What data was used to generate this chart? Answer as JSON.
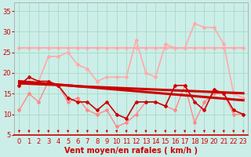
{
  "background_color": "#cceee8",
  "grid_color": "#aaddcc",
  "xlabel": "Vent moyen/en rafales ( km/h )",
  "xlim": [
    -0.5,
    23.5
  ],
  "ylim": [
    5,
    37
  ],
  "yticks": [
    5,
    10,
    15,
    20,
    25,
    30,
    35
  ],
  "xticks": [
    0,
    1,
    2,
    3,
    4,
    5,
    6,
    7,
    8,
    9,
    10,
    11,
    12,
    13,
    14,
    15,
    16,
    17,
    18,
    19,
    20,
    21,
    22,
    23
  ],
  "series": [
    {
      "color": "#ffaaaa",
      "lw": 1.2,
      "marker": "D",
      "ms": 2.0,
      "data": [
        17,
        18,
        18,
        24,
        24,
        25,
        22,
        21,
        18,
        19,
        19,
        19,
        28,
        20,
        19,
        27,
        26,
        26,
        32,
        31,
        31,
        27,
        15,
        14
      ]
    },
    {
      "color": "#ffaaaa",
      "lw": 1.5,
      "marker": "D",
      "ms": 2.0,
      "data": [
        26,
        26,
        26,
        26,
        26,
        26,
        26,
        26,
        26,
        26,
        26,
        26,
        26,
        26,
        26,
        26,
        26,
        26,
        26,
        26,
        26,
        26,
        26,
        26
      ]
    },
    {
      "color": "#ff8888",
      "lw": 1.0,
      "marker": "D",
      "ms": 2.0,
      "data": [
        11,
        15,
        13,
        18,
        17,
        13,
        14,
        11,
        10,
        11,
        7,
        8,
        10,
        13,
        13,
        12,
        11,
        17,
        8,
        13,
        15,
        15,
        10,
        10
      ]
    },
    {
      "color": "#cc0000",
      "lw": 2.2,
      "marker": null,
      "ms": 0,
      "data": [
        17.5,
        17.4,
        17.3,
        17.2,
        17.1,
        17.0,
        16.8,
        16.7,
        16.6,
        16.5,
        16.4,
        16.3,
        16.2,
        16.1,
        16.0,
        15.9,
        15.8,
        15.7,
        15.6,
        15.5,
        15.4,
        15.3,
        15.2,
        15.1
      ]
    },
    {
      "color": "#cc0000",
      "lw": 2.2,
      "marker": null,
      "ms": 0,
      "data": [
        18.0,
        17.8,
        17.6,
        17.4,
        17.2,
        17.0,
        16.8,
        16.6,
        16.4,
        16.2,
        16.0,
        15.8,
        15.6,
        15.4,
        15.2,
        15.0,
        14.8,
        14.6,
        14.4,
        14.2,
        14.0,
        13.8,
        13.6,
        13.4
      ]
    },
    {
      "color": "#cc0000",
      "lw": 1.2,
      "marker": "D",
      "ms": 2.0,
      "data": [
        17,
        19,
        18,
        18,
        17,
        14,
        13,
        13,
        11,
        13,
        10,
        9,
        13,
        13,
        13,
        12,
        17,
        17,
        13,
        11,
        16,
        15,
        11,
        10
      ]
    }
  ],
  "arrow_color": "#cc0000",
  "xlabel_color": "#cc0000",
  "xlabel_fontsize": 7,
  "tick_fontsize": 6,
  "tick_color": "#cc0000"
}
